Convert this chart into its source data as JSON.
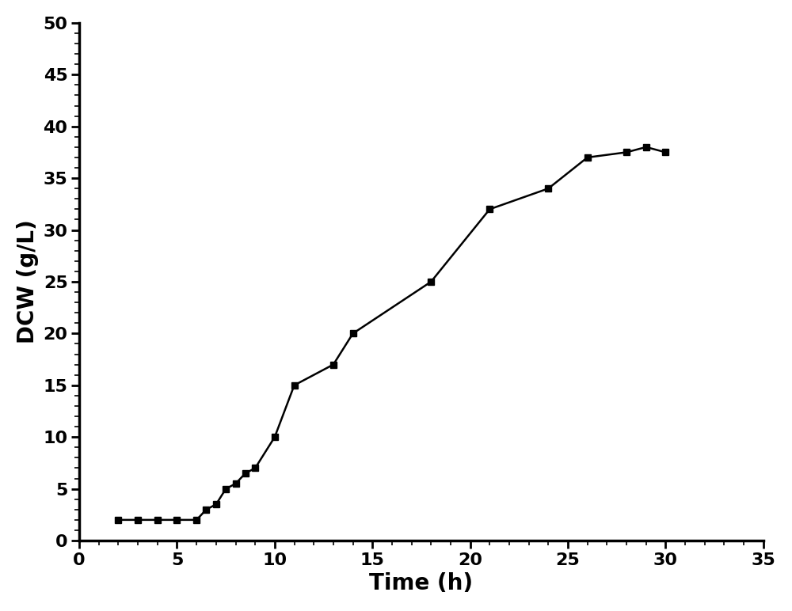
{
  "x": [
    2,
    3,
    4,
    5,
    6,
    6.5,
    7,
    7.5,
    8,
    8.5,
    9,
    10,
    11,
    13,
    14,
    18,
    21,
    24,
    26,
    28,
    29,
    30
  ],
  "y": [
    2.0,
    2.0,
    2.0,
    2.0,
    2.0,
    3.0,
    3.5,
    5.0,
    5.5,
    6.5,
    7.0,
    10.0,
    15.0,
    17.0,
    20.0,
    25.0,
    32.0,
    34.0,
    37.0,
    37.5,
    38.0,
    37.5
  ],
  "xlabel": "Time (h)",
  "ylabel": "DCW (g/L)",
  "xlim": [
    0,
    35
  ],
  "ylim": [
    0,
    50
  ],
  "xticks": [
    0,
    5,
    10,
    15,
    20,
    25,
    30,
    35
  ],
  "yticks": [
    0,
    5,
    10,
    15,
    20,
    25,
    30,
    35,
    40,
    45,
    50
  ],
  "line_color": "#000000",
  "marker": "s",
  "marker_size": 6,
  "line_width": 1.8,
  "background_color": "#ffffff",
  "xlabel_fontsize": 20,
  "ylabel_fontsize": 20,
  "tick_fontsize": 16,
  "spine_linewidth": 2.5
}
